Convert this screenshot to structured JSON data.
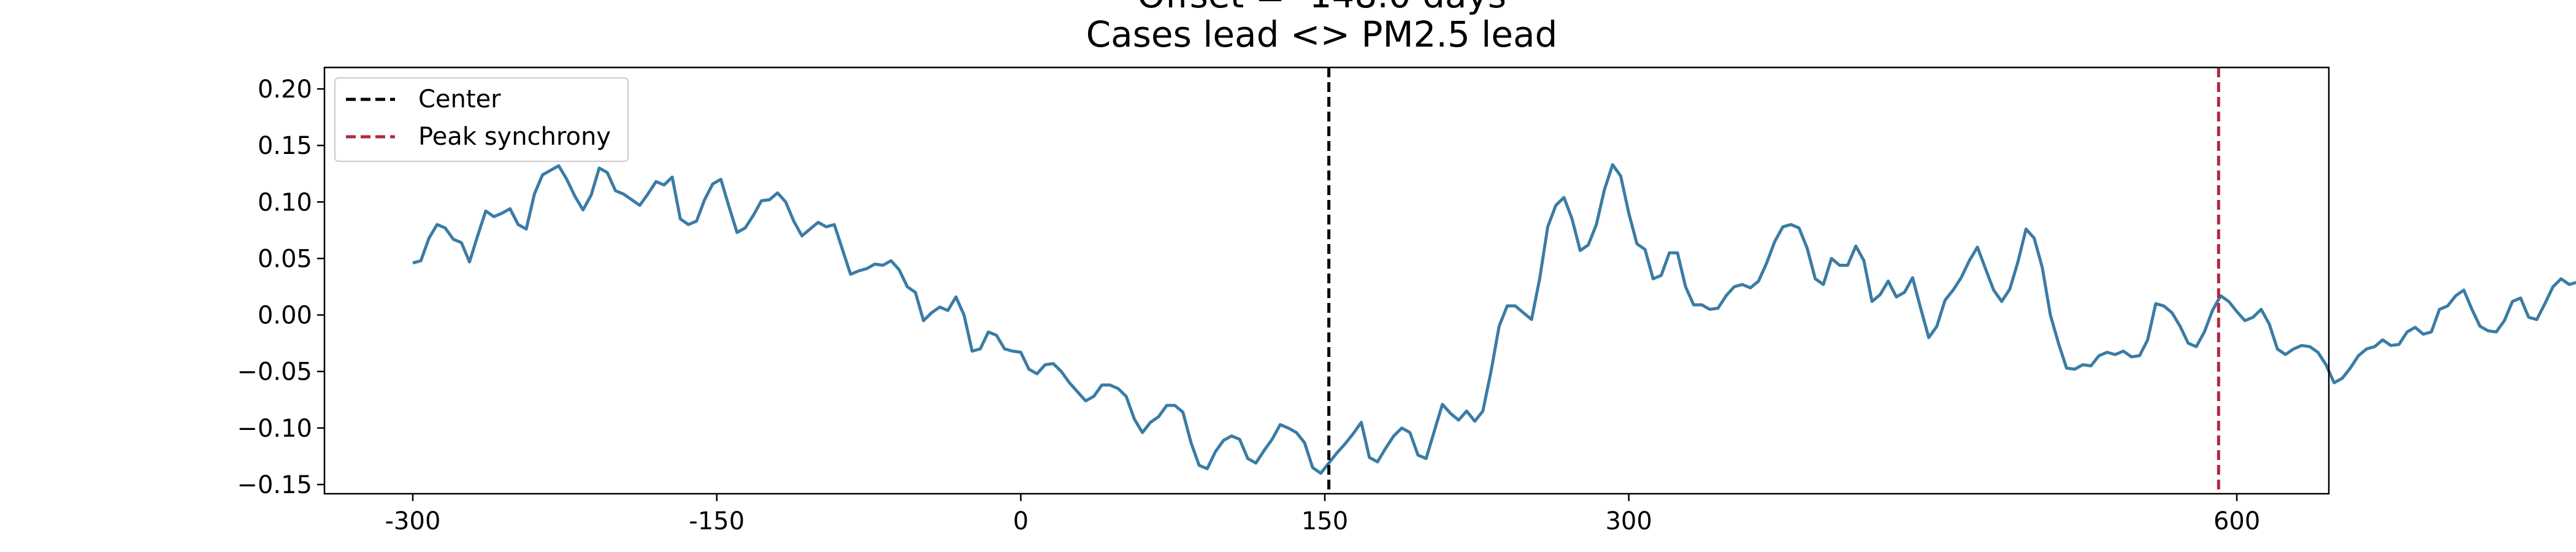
{
  "chart_data": {
    "type": "line",
    "title_line1": "Offset = -148.0 days",
    "title_line2": "Cases lead <> PM2.5 lead",
    "xlabel": "",
    "ylabel": "",
    "x_ticks": [
      -300,
      -150,
      0,
      150,
      300,
      600
    ],
    "x_tick_labels": [
      "-300",
      "-150",
      "0",
      "150",
      "300",
      "600"
    ],
    "y_ticks": [
      -0.15,
      -0.1,
      -0.05,
      0.0,
      0.05,
      0.1,
      0.15,
      0.2
    ],
    "y_tick_labels": [
      "−0.15",
      "−0.10",
      "−0.05",
      "0.00",
      "0.05",
      "0.10",
      "0.15",
      "0.20"
    ],
    "ylim": [
      -0.155,
      0.21
    ],
    "grid": false,
    "legend": {
      "placement": "upper-left",
      "entries": [
        {
          "label": "Center",
          "color": "#000000",
          "style": "dashed"
        },
        {
          "label": "Peak synchrony",
          "color": "#b0283f",
          "style": "dashed"
        }
      ]
    },
    "center_line_x": 152,
    "peak_line_x": 591,
    "series": [
      {
        "color": "#3a7ca5",
        "points": [
          [
            -300,
            0.046
          ],
          [
            -296,
            0.048
          ],
          [
            -292,
            0.068
          ],
          [
            -288,
            0.08
          ],
          [
            -284,
            0.077
          ],
          [
            -280,
            0.067
          ],
          [
            -276,
            0.064
          ],
          [
            -272,
            0.047
          ],
          [
            -268,
            0.07
          ],
          [
            -264,
            0.092
          ],
          [
            -260,
            0.087
          ],
          [
            -256,
            0.09
          ],
          [
            -252,
            0.094
          ],
          [
            -248,
            0.08
          ],
          [
            -244,
            0.076
          ],
          [
            -240,
            0.107
          ],
          [
            -236,
            0.124
          ],
          [
            -232,
            0.128
          ],
          [
            -228,
            0.132
          ],
          [
            -224,
            0.12
          ],
          [
            -220,
            0.105
          ],
          [
            -216,
            0.093
          ],
          [
            -212,
            0.106
          ],
          [
            -208,
            0.13
          ],
          [
            -204,
            0.126
          ],
          [
            -200,
            0.11
          ],
          [
            -196,
            0.107
          ],
          [
            -192,
            0.102
          ],
          [
            -188,
            0.097
          ],
          [
            -184,
            0.107
          ],
          [
            -180,
            0.118
          ],
          [
            -176,
            0.115
          ],
          [
            -172,
            0.122
          ],
          [
            -168,
            0.085
          ],
          [
            -164,
            0.08
          ],
          [
            -160,
            0.083
          ],
          [
            -156,
            0.102
          ],
          [
            -152,
            0.116
          ],
          [
            -148,
            0.12
          ],
          [
            -144,
            0.096
          ],
          [
            -140,
            0.073
          ],
          [
            -136,
            0.077
          ],
          [
            -132,
            0.088
          ],
          [
            -128,
            0.101
          ],
          [
            -124,
            0.102
          ],
          [
            -120,
            0.108
          ],
          [
            -116,
            0.1
          ],
          [
            -112,
            0.083
          ],
          [
            -108,
            0.07
          ],
          [
            -104,
            0.076
          ],
          [
            -100,
            0.082
          ],
          [
            -96,
            0.078
          ],
          [
            -92,
            0.08
          ],
          [
            -88,
            0.058
          ],
          [
            -84,
            0.036
          ],
          [
            -80,
            0.039
          ],
          [
            -76,
            0.041
          ],
          [
            -72,
            0.045
          ],
          [
            -68,
            0.044
          ],
          [
            -64,
            0.048
          ],
          [
            -60,
            0.04
          ],
          [
            -56,
            0.025
          ],
          [
            -52,
            0.02
          ],
          [
            -48,
            -0.005
          ],
          [
            -44,
            0.002
          ],
          [
            -40,
            0.007
          ],
          [
            -36,
            0.004
          ],
          [
            -32,
            0.016
          ],
          [
            -28,
            0.0
          ],
          [
            -24,
            -0.032
          ],
          [
            -20,
            -0.03
          ],
          [
            -16,
            -0.015
          ],
          [
            -12,
            -0.018
          ],
          [
            -8,
            -0.03
          ],
          [
            -4,
            -0.032
          ],
          [
            0,
            -0.033
          ],
          [
            4,
            -0.048
          ],
          [
            8,
            -0.052
          ],
          [
            12,
            -0.044
          ],
          [
            16,
            -0.043
          ],
          [
            20,
            -0.05
          ],
          [
            24,
            -0.06
          ],
          [
            28,
            -0.068
          ],
          [
            32,
            -0.076
          ],
          [
            36,
            -0.072
          ],
          [
            40,
            -0.062
          ],
          [
            44,
            -0.062
          ],
          [
            48,
            -0.065
          ],
          [
            52,
            -0.072
          ],
          [
            56,
            -0.092
          ],
          [
            60,
            -0.104
          ],
          [
            64,
            -0.095
          ],
          [
            68,
            -0.09
          ],
          [
            72,
            -0.08
          ],
          [
            76,
            -0.08
          ],
          [
            80,
            -0.086
          ],
          [
            84,
            -0.113
          ],
          [
            88,
            -0.133
          ],
          [
            92,
            -0.136
          ],
          [
            96,
            -0.121
          ],
          [
            100,
            -0.111
          ],
          [
            104,
            -0.107
          ],
          [
            108,
            -0.11
          ],
          [
            112,
            -0.127
          ],
          [
            116,
            -0.131
          ],
          [
            120,
            -0.12
          ],
          [
            124,
            -0.11
          ],
          [
            128,
            -0.097
          ],
          [
            132,
            -0.1
          ],
          [
            136,
            -0.104
          ],
          [
            140,
            -0.113
          ],
          [
            144,
            -0.135
          ],
          [
            148,
            -0.14
          ],
          [
            152,
            -0.131
          ],
          [
            156,
            -0.122
          ],
          [
            160,
            -0.114
          ],
          [
            164,
            -0.105
          ],
          [
            168,
            -0.095
          ],
          [
            172,
            -0.126
          ],
          [
            176,
            -0.13
          ],
          [
            180,
            -0.118
          ],
          [
            184,
            -0.107
          ],
          [
            188,
            -0.1
          ],
          [
            192,
            -0.104
          ],
          [
            196,
            -0.124
          ],
          [
            200,
            -0.127
          ],
          [
            204,
            -0.103
          ],
          [
            208,
            -0.079
          ],
          [
            212,
            -0.087
          ],
          [
            216,
            -0.093
          ],
          [
            220,
            -0.085
          ],
          [
            224,
            -0.094
          ],
          [
            228,
            -0.085
          ],
          [
            232,
            -0.05
          ],
          [
            236,
            -0.01
          ],
          [
            240,
            0.008
          ],
          [
            244,
            0.008
          ],
          [
            248,
            0.002
          ],
          [
            252,
            -0.004
          ],
          [
            256,
            0.032
          ],
          [
            260,
            0.078
          ],
          [
            264,
            0.097
          ],
          [
            268,
            0.104
          ],
          [
            272,
            0.085
          ],
          [
            276,
            0.057
          ],
          [
            280,
            0.062
          ],
          [
            284,
            0.08
          ],
          [
            288,
            0.111
          ],
          [
            292,
            0.133
          ],
          [
            296,
            0.123
          ],
          [
            300,
            0.09
          ],
          [
            304,
            0.063
          ],
          [
            308,
            0.058
          ],
          [
            312,
            0.032
          ],
          [
            316,
            0.035
          ],
          [
            320,
            0.055
          ],
          [
            324,
            0.055
          ],
          [
            328,
            0.025
          ],
          [
            332,
            0.009
          ],
          [
            336,
            0.009
          ],
          [
            340,
            0.005
          ],
          [
            344,
            0.006
          ],
          [
            348,
            0.017
          ],
          [
            352,
            0.025
          ],
          [
            356,
            0.027
          ],
          [
            360,
            0.024
          ],
          [
            364,
            0.03
          ],
          [
            368,
            0.046
          ],
          [
            372,
            0.065
          ],
          [
            376,
            0.078
          ],
          [
            380,
            0.08
          ],
          [
            384,
            0.077
          ],
          [
            388,
            0.059
          ],
          [
            392,
            0.032
          ],
          [
            396,
            0.027
          ],
          [
            400,
            0.05
          ],
          [
            404,
            0.044
          ],
          [
            408,
            0.044
          ],
          [
            412,
            0.061
          ],
          [
            416,
            0.048
          ],
          [
            420,
            0.012
          ],
          [
            424,
            0.018
          ],
          [
            428,
            0.03
          ],
          [
            432,
            0.016
          ],
          [
            436,
            0.02
          ],
          [
            440,
            0.033
          ],
          [
            444,
            0.006
          ],
          [
            448,
            -0.02
          ],
          [
            452,
            -0.01
          ],
          [
            456,
            0.013
          ],
          [
            460,
            0.022
          ],
          [
            464,
            0.033
          ],
          [
            468,
            0.048
          ],
          [
            472,
            0.06
          ],
          [
            476,
            0.041
          ],
          [
            480,
            0.022
          ],
          [
            484,
            0.012
          ],
          [
            488,
            0.023
          ],
          [
            492,
            0.047
          ],
          [
            496,
            0.076
          ],
          [
            500,
            0.068
          ],
          [
            504,
            0.042
          ],
          [
            508,
            0.0
          ],
          [
            512,
            -0.025
          ],
          [
            516,
            -0.047
          ],
          [
            520,
            -0.048
          ],
          [
            524,
            -0.044
          ],
          [
            528,
            -0.045
          ],
          [
            532,
            -0.036
          ],
          [
            536,
            -0.033
          ],
          [
            540,
            -0.035
          ],
          [
            544,
            -0.032
          ],
          [
            548,
            -0.037
          ],
          [
            552,
            -0.036
          ],
          [
            556,
            -0.022
          ],
          [
            560,
            0.01
          ],
          [
            564,
            0.008
          ],
          [
            568,
            0.002
          ],
          [
            572,
            -0.01
          ],
          [
            576,
            -0.025
          ],
          [
            580,
            -0.028
          ],
          [
            584,
            -0.015
          ],
          [
            588,
            0.004
          ],
          [
            592,
            0.017
          ],
          [
            596,
            0.012
          ],
          [
            600,
            0.003
          ],
          [
            604,
            -0.005
          ],
          [
            608,
            -0.002
          ],
          [
            612,
            0.005
          ],
          [
            616,
            -0.008
          ],
          [
            620,
            -0.03
          ],
          [
            624,
            -0.035
          ],
          [
            628,
            -0.03
          ],
          [
            632,
            -0.027
          ],
          [
            636,
            -0.028
          ],
          [
            640,
            -0.033
          ],
          [
            644,
            -0.044
          ],
          [
            648,
            -0.06
          ],
          [
            652,
            -0.056
          ],
          [
            656,
            -0.047
          ],
          [
            660,
            -0.036
          ],
          [
            664,
            -0.03
          ],
          [
            668,
            -0.028
          ],
          [
            672,
            -0.022
          ],
          [
            676,
            -0.027
          ],
          [
            680,
            -0.026
          ],
          [
            684,
            -0.015
          ],
          [
            688,
            -0.011
          ],
          [
            692,
            -0.017
          ],
          [
            696,
            -0.015
          ],
          [
            700,
            0.005
          ],
          [
            704,
            0.008
          ],
          [
            708,
            0.017
          ],
          [
            712,
            0.022
          ],
          [
            716,
            0.005
          ],
          [
            720,
            -0.01
          ],
          [
            724,
            -0.014
          ],
          [
            728,
            -0.015
          ],
          [
            732,
            -0.005
          ],
          [
            736,
            0.012
          ],
          [
            740,
            0.015
          ],
          [
            744,
            -0.002
          ],
          [
            748,
            -0.004
          ],
          [
            752,
            0.01
          ],
          [
            756,
            0.025
          ],
          [
            760,
            0.032
          ],
          [
            764,
            0.027
          ],
          [
            768,
            0.029
          ],
          [
            772,
            0.042
          ],
          [
            776,
            0.06
          ],
          [
            780,
            0.066
          ],
          [
            784,
            0.052
          ],
          [
            788,
            0.015
          ],
          [
            792,
            -0.012
          ],
          [
            796,
            -0.022
          ],
          [
            800,
            -0.02
          ],
          [
            804,
            -0.008
          ],
          [
            808,
            0.0
          ],
          [
            812,
            0.008
          ],
          [
            816,
            0.012
          ],
          [
            820,
            0.025
          ],
          [
            824,
            0.045
          ],
          [
            828,
            0.065
          ],
          [
            832,
            0.086
          ],
          [
            836,
            0.09
          ],
          [
            840,
            0.092
          ],
          [
            844,
            0.096
          ],
          [
            848,
            0.1
          ],
          [
            852,
            0.105
          ],
          [
            856,
            0.115
          ],
          [
            860,
            0.133
          ],
          [
            864,
            0.17
          ],
          [
            868,
            0.2
          ],
          [
            872,
            0.203
          ],
          [
            876,
            0.198
          ],
          [
            880,
            0.185
          ]
        ]
      }
    ]
  }
}
